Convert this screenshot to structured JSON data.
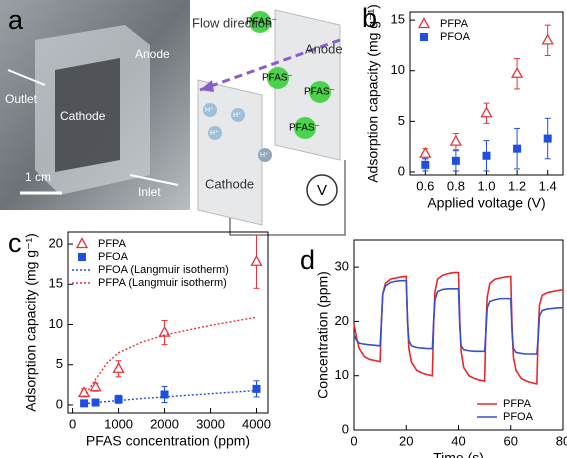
{
  "figure_a": {
    "label": "a",
    "photo_labels": [
      "Outlet",
      "Cathode",
      "Anode",
      "Inlet"
    ],
    "scale_bar": "1 cm",
    "schematic": {
      "flow": "Flow direction",
      "anode": "Anode",
      "cathode": "Cathode",
      "anions": [
        "PFAS⁻",
        "PFAS⁻",
        "PFAS⁻",
        "PFAS⁻"
      ],
      "protons": [
        "H⁺",
        "H⁺",
        "H⁺",
        "H⁺"
      ],
      "meter": "V"
    }
  },
  "chart_data": [
    {
      "type": "scatter",
      "panel": "b",
      "xlabel": "Applied voltage (V)",
      "ylabel": "Adsorption capacity (mg g⁻¹)",
      "x": [
        0.6,
        0.8,
        1.0,
        1.2,
        1.4
      ],
      "series": [
        {
          "name": "PFPA",
          "color": "#e8333a",
          "marker": "triangle-open",
          "values": [
            1.8,
            3.0,
            5.8,
            9.7,
            13.0
          ],
          "errors": [
            0.5,
            0.8,
            1.0,
            1.5,
            1.5
          ]
        },
        {
          "name": "PFOA",
          "color": "#1f4fe0",
          "marker": "square",
          "values": [
            0.7,
            1.1,
            1.6,
            2.3,
            3.3
          ],
          "errors": [
            0.6,
            1.0,
            1.5,
            2.0,
            2.0
          ]
        }
      ],
      "xlim": [
        0.5,
        1.5
      ],
      "xticks": [
        0.6,
        0.8,
        {
          "value": 1,
          "label": "1.0"
        },
        1.2,
        1.4
      ],
      "ylim": [
        -0.3,
        15.8
      ],
      "yticks": [
        0,
        5,
        10,
        15
      ],
      "legend": "upper left"
    },
    {
      "type": "scatter",
      "panel": "c",
      "xlabel": "PFAS concentration (ppm)",
      "ylabel": "Adsorption capacity (mg g⁻¹)",
      "x": [
        250,
        500,
        1000,
        2000,
        4000
      ],
      "series": [
        {
          "name": "PFPA",
          "color": "#e8333a",
          "marker": "triangle-open",
          "values": [
            1.5,
            2.2,
            4.5,
            9.0,
            17.8
          ],
          "errors": [
            0.5,
            0.5,
            1.0,
            1.5,
            3.3
          ]
        },
        {
          "name": "PFOA",
          "color": "#1f4fe0",
          "marker": "square",
          "values": [
            0.2,
            0.3,
            0.7,
            1.3,
            2.0
          ],
          "errors": [
            0.2,
            0.3,
            0.5,
            1.0,
            1.0
          ]
        },
        {
          "name": "PFOA (Langmuir isotherm)",
          "color": "#1f4fe0",
          "marker": "dotted-line",
          "x": [
            250,
            500,
            1000,
            1500,
            2000,
            2500,
            3000,
            3500,
            4000
          ],
          "values": [
            0.15,
            0.3,
            0.55,
            0.8,
            1.0,
            1.2,
            1.4,
            1.6,
            1.8
          ]
        },
        {
          "name": "PFPA (Langmuir isotherm)",
          "color": "#e8333a",
          "marker": "dotted-line",
          "x": [
            250,
            500,
            750,
            1000,
            1500,
            2000,
            2500,
            3000,
            3500,
            4000
          ],
          "values": [
            1.0,
            3.2,
            5.2,
            6.5,
            7.8,
            8.7,
            9.3,
            9.9,
            10.4,
            10.9
          ]
        }
      ],
      "xlim": [
        -100,
        4250
      ],
      "xticks": [
        0,
        1000,
        2000,
        3000,
        4000
      ],
      "ylim": [
        -1,
        21.5
      ],
      "yticks": [
        0,
        5,
        10,
        15,
        20
      ],
      "legend": "upper left"
    },
    {
      "type": "line",
      "panel": "d",
      "xlabel": "Time (s)",
      "ylabel": "Concentration (ppm)",
      "x": [
        0,
        1,
        2,
        4,
        6,
        8,
        10,
        10.5,
        11,
        12,
        14,
        16,
        18,
        20,
        20.5,
        21,
        22,
        24,
        26,
        28,
        30,
        30.5,
        31,
        32,
        34,
        36,
        38,
        40,
        40.5,
        41,
        42,
        44,
        46,
        48,
        50,
        50.5,
        51,
        52,
        54,
        56,
        58,
        60,
        60.5,
        61,
        62,
        64,
        66,
        68,
        70,
        70.5,
        71,
        72,
        74,
        76,
        78,
        80
      ],
      "series": [
        {
          "name": "PFPA",
          "color": "#e8282d",
          "values": [
            19.5,
            17,
            15,
            13.5,
            13,
            12.8,
            12.6,
            20,
            25,
            27,
            27.8,
            28,
            28.2,
            28.3,
            20,
            15,
            12.5,
            11,
            10.5,
            10.2,
            10,
            20,
            25.5,
            27.8,
            28.5,
            28.8,
            29,
            29,
            20,
            14.5,
            11.5,
            10,
            9.5,
            9.2,
            9,
            19,
            24.5,
            27,
            27.8,
            28,
            28.2,
            28.3,
            19,
            13.5,
            11,
            9.5,
            9,
            8.7,
            8.5,
            18,
            23,
            24.8,
            25.3,
            25.5,
            25.7,
            25.8
          ]
        },
        {
          "name": "PFOA",
          "color": "#3b4fc8",
          "values": [
            17.5,
            16.5,
            16,
            15.8,
            15.7,
            15.6,
            15.5,
            20,
            25,
            26.5,
            27.2,
            27.4,
            27.5,
            27.5,
            20,
            16.5,
            15.5,
            15.2,
            15.1,
            15,
            15,
            20,
            24,
            25.5,
            25.9,
            26,
            26,
            26,
            19,
            15.5,
            14.8,
            14.6,
            14.5,
            14.5,
            14.5,
            18,
            22.5,
            23.7,
            24,
            24.2,
            24.2,
            24.2,
            18,
            15,
            14.3,
            14.1,
            14,
            14,
            14,
            17,
            21,
            22,
            22.3,
            22.4,
            22.5,
            22.5
          ]
        }
      ],
      "xlim": [
        0,
        80
      ],
      "xticks": [
        0,
        20,
        40,
        60,
        80
      ],
      "ylim": [
        0,
        35
      ],
      "yticks": [
        0,
        10,
        20,
        30
      ],
      "legend": "lower right"
    }
  ]
}
